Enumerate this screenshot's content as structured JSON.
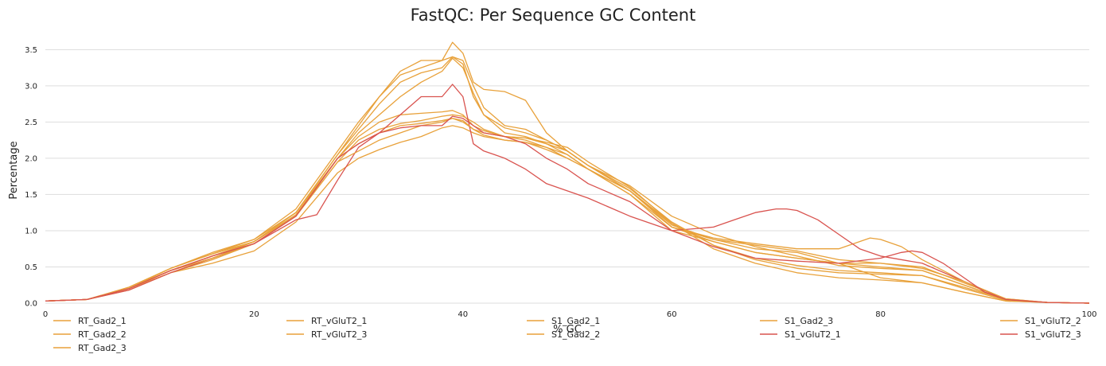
{
  "chart_data": {
    "type": "line",
    "title": "FastQC: Per Sequence GC Content",
    "xlabel": "% GC",
    "ylabel": "Percentage",
    "xlim": [
      0,
      100
    ],
    "ylim": [
      0,
      3.8
    ],
    "xticks": [
      0,
      20,
      40,
      60,
      80,
      100
    ],
    "yticks": [
      0.0,
      0.5,
      1.0,
      1.5,
      2.0,
      2.5,
      3.0,
      3.5
    ],
    "grid": "horizontal",
    "legend_position": "bottom",
    "series": [
      {
        "name": "RT_Gad2_1",
        "color": "#e8a13a",
        "x": [
          0,
          4,
          8,
          12,
          16,
          20,
          24,
          28,
          30,
          32,
          34,
          36,
          38,
          39,
          40,
          41,
          42,
          44,
          46,
          48,
          50,
          52,
          56,
          60,
          64,
          68,
          72,
          76,
          80,
          84,
          88,
          92,
          96,
          100
        ],
        "y": [
          0.03,
          0.05,
          0.2,
          0.45,
          0.65,
          0.85,
          1.25,
          2.05,
          2.45,
          2.85,
          3.15,
          3.25,
          3.35,
          3.4,
          3.35,
          3.0,
          2.7,
          2.45,
          2.4,
          2.25,
          2.1,
          1.9,
          1.55,
          1.1,
          0.75,
          0.55,
          0.42,
          0.35,
          0.32,
          0.28,
          0.15,
          0.03,
          0.01,
          0
        ]
      },
      {
        "name": "RT_Gad2_2",
        "color": "#e8a13a",
        "x": [
          0,
          4,
          8,
          12,
          16,
          20,
          24,
          28,
          30,
          32,
          34,
          36,
          38,
          39,
          40,
          41,
          42,
          44,
          46,
          48,
          50,
          52,
          56,
          60,
          64,
          68,
          72,
          76,
          80,
          84,
          88,
          92,
          96,
          100
        ],
        "y": [
          0.03,
          0.05,
          0.22,
          0.48,
          0.68,
          0.85,
          1.2,
          2.0,
          2.3,
          2.5,
          2.6,
          2.62,
          2.64,
          2.66,
          2.6,
          2.45,
          2.38,
          2.3,
          2.28,
          2.2,
          2.1,
          1.9,
          1.58,
          1.12,
          0.8,
          0.6,
          0.48,
          0.42,
          0.4,
          0.38,
          0.2,
          0.04,
          0.01,
          0
        ]
      },
      {
        "name": "RT_Gad2_3",
        "color": "#e8a13a",
        "x": [
          0,
          4,
          8,
          12,
          16,
          20,
          24,
          28,
          30,
          32,
          34,
          36,
          38,
          39,
          40,
          41,
          42,
          44,
          46,
          48,
          50,
          52,
          56,
          60,
          64,
          68,
          72,
          76,
          80,
          84,
          88,
          92,
          96,
          100
        ],
        "y": [
          0.03,
          0.05,
          0.2,
          0.45,
          0.62,
          0.85,
          1.22,
          2.0,
          2.2,
          2.35,
          2.45,
          2.48,
          2.52,
          2.55,
          2.5,
          2.4,
          2.35,
          2.3,
          2.28,
          2.22,
          2.15,
          1.95,
          1.6,
          1.1,
          0.8,
          0.62,
          0.52,
          0.45,
          0.42,
          0.38,
          0.22,
          0.05,
          0.01,
          0
        ]
      },
      {
        "name": "RT_vGluT2_1",
        "color": "#e8a13a",
        "x": [
          0,
          4,
          8,
          12,
          16,
          20,
          24,
          28,
          30,
          32,
          34,
          36,
          38,
          39,
          40,
          41,
          42,
          44,
          46,
          48,
          50,
          52,
          56,
          60,
          64,
          68,
          72,
          76,
          78,
          79,
          80,
          82,
          84,
          88,
          92,
          96,
          100
        ],
        "y": [
          0.03,
          0.05,
          0.18,
          0.42,
          0.6,
          0.82,
          1.2,
          1.95,
          2.25,
          2.4,
          2.48,
          2.52,
          2.58,
          2.6,
          2.58,
          2.5,
          2.4,
          2.3,
          2.25,
          2.15,
          2.05,
          1.85,
          1.5,
          1.05,
          0.9,
          0.82,
          0.75,
          0.75,
          0.85,
          0.9,
          0.88,
          0.78,
          0.6,
          0.3,
          0.05,
          0.01,
          0
        ]
      },
      {
        "name": "RT_vGluT2_3",
        "color": "#e8a13a",
        "x": [
          0,
          4,
          8,
          12,
          16,
          20,
          24,
          28,
          30,
          32,
          34,
          36,
          38,
          39,
          40,
          41,
          42,
          44,
          46,
          48,
          50,
          52,
          56,
          60,
          64,
          68,
          72,
          76,
          80,
          84,
          88,
          92,
          96,
          100
        ],
        "y": [
          0.03,
          0.05,
          0.2,
          0.48,
          0.68,
          0.88,
          1.25,
          2.05,
          2.4,
          2.75,
          3.05,
          3.18,
          3.25,
          3.4,
          3.3,
          2.85,
          2.6,
          2.35,
          2.3,
          2.2,
          2.05,
          1.85,
          1.5,
          1.0,
          0.85,
          0.7,
          0.62,
          0.55,
          0.55,
          0.5,
          0.28,
          0.06,
          0.01,
          0
        ]
      },
      {
        "name": "S1_Gad2_1",
        "color": "#e8a13a",
        "x": [
          0,
          4,
          8,
          12,
          16,
          20,
          24,
          28,
          30,
          32,
          34,
          36,
          38,
          39,
          40,
          41,
          42,
          44,
          46,
          48,
          50,
          52,
          56,
          60,
          64,
          68,
          72,
          76,
          80,
          84,
          88,
          92,
          96,
          100
        ],
        "y": [
          0.03,
          0.05,
          0.2,
          0.42,
          0.55,
          0.72,
          1.12,
          1.8,
          2.0,
          2.12,
          2.22,
          2.3,
          2.42,
          2.45,
          2.42,
          2.35,
          2.3,
          2.25,
          2.22,
          2.15,
          2.0,
          1.85,
          1.55,
          1.05,
          0.88,
          0.75,
          0.7,
          0.55,
          0.35,
          0.28,
          0.15,
          0.03,
          0.01,
          0
        ]
      },
      {
        "name": "S1_Gad2_2",
        "color": "#e8a13a",
        "x": [
          0,
          4,
          8,
          12,
          16,
          20,
          24,
          28,
          30,
          32,
          34,
          36,
          38,
          39,
          40,
          41,
          42,
          44,
          46,
          48,
          50,
          52,
          56,
          60,
          64,
          68,
          72,
          76,
          80,
          84,
          88,
          92,
          96,
          100
        ],
        "y": [
          0.03,
          0.05,
          0.22,
          0.48,
          0.7,
          0.88,
          1.3,
          2.1,
          2.5,
          2.85,
          3.2,
          3.35,
          3.35,
          3.6,
          3.45,
          3.05,
          2.95,
          2.92,
          2.8,
          2.35,
          2.1,
          1.9,
          1.62,
          1.2,
          0.95,
          0.78,
          0.65,
          0.52,
          0.48,
          0.45,
          0.25,
          0.05,
          0.01,
          0
        ]
      },
      {
        "name": "S1_Gad2_3",
        "color": "#e8a13a",
        "x": [
          0,
          4,
          8,
          12,
          16,
          20,
          24,
          28,
          30,
          32,
          34,
          36,
          38,
          39,
          40,
          41,
          42,
          44,
          46,
          48,
          50,
          52,
          56,
          60,
          64,
          68,
          72,
          76,
          80,
          84,
          88,
          92,
          96,
          100
        ],
        "y": [
          0.03,
          0.05,
          0.2,
          0.45,
          0.65,
          0.85,
          1.25,
          2.0,
          2.35,
          2.6,
          2.85,
          3.05,
          3.2,
          3.38,
          3.25,
          2.9,
          2.6,
          2.42,
          2.35,
          2.25,
          2.1,
          1.9,
          1.55,
          1.05,
          0.85,
          0.7,
          0.62,
          0.55,
          0.5,
          0.45,
          0.25,
          0.05,
          0.01,
          0
        ]
      },
      {
        "name": "S1_vGluT2_1",
        "color": "#d9534f",
        "x": [
          0,
          4,
          8,
          12,
          16,
          20,
          24,
          26,
          28,
          30,
          32,
          34,
          36,
          38,
          39,
          40,
          41,
          42,
          43,
          44,
          46,
          48,
          50,
          52,
          56,
          60,
          64,
          66,
          68,
          70,
          71,
          72,
          74,
          76,
          78,
          80,
          84,
          88,
          92,
          96,
          100
        ],
        "y": [
          0.03,
          0.05,
          0.18,
          0.42,
          0.62,
          0.82,
          1.15,
          1.22,
          1.7,
          2.15,
          2.35,
          2.6,
          2.85,
          2.85,
          3.02,
          2.85,
          2.2,
          2.1,
          2.05,
          2.0,
          1.85,
          1.65,
          1.55,
          1.45,
          1.2,
          1.0,
          1.05,
          1.15,
          1.25,
          1.3,
          1.3,
          1.28,
          1.15,
          0.95,
          0.75,
          0.65,
          0.55,
          0.3,
          0.05,
          0.01,
          0
        ]
      },
      {
        "name": "S1_vGluT2_2",
        "color": "#e8a13a",
        "x": [
          0,
          4,
          8,
          12,
          16,
          20,
          24,
          28,
          30,
          32,
          34,
          36,
          38,
          39,
          40,
          41,
          42,
          44,
          46,
          48,
          50,
          52,
          56,
          60,
          64,
          68,
          72,
          76,
          80,
          84,
          88,
          92,
          96,
          100
        ],
        "y": [
          0.03,
          0.05,
          0.2,
          0.45,
          0.62,
          0.82,
          1.2,
          1.95,
          2.1,
          2.25,
          2.35,
          2.45,
          2.5,
          2.55,
          2.52,
          2.4,
          2.32,
          2.25,
          2.22,
          2.12,
          2.0,
          1.85,
          1.55,
          1.08,
          0.88,
          0.8,
          0.72,
          0.6,
          0.55,
          0.48,
          0.3,
          0.06,
          0.01,
          0
        ]
      },
      {
        "name": "S1_vGluT2_3",
        "color": "#d9534f",
        "x": [
          0,
          4,
          8,
          12,
          16,
          20,
          24,
          28,
          30,
          32,
          34,
          36,
          38,
          39,
          40,
          41,
          42,
          44,
          46,
          48,
          50,
          52,
          56,
          60,
          64,
          68,
          72,
          76,
          80,
          82,
          83,
          84,
          86,
          88,
          90,
          92,
          96,
          100
        ],
        "y": [
          0.03,
          0.05,
          0.2,
          0.45,
          0.65,
          0.82,
          1.2,
          2.0,
          2.2,
          2.35,
          2.42,
          2.45,
          2.45,
          2.58,
          2.55,
          2.45,
          2.35,
          2.3,
          2.2,
          2.0,
          1.85,
          1.65,
          1.4,
          1.0,
          0.78,
          0.62,
          0.58,
          0.55,
          0.62,
          0.7,
          0.72,
          0.7,
          0.55,
          0.35,
          0.15,
          0.05,
          0.01,
          0
        ]
      }
    ]
  }
}
